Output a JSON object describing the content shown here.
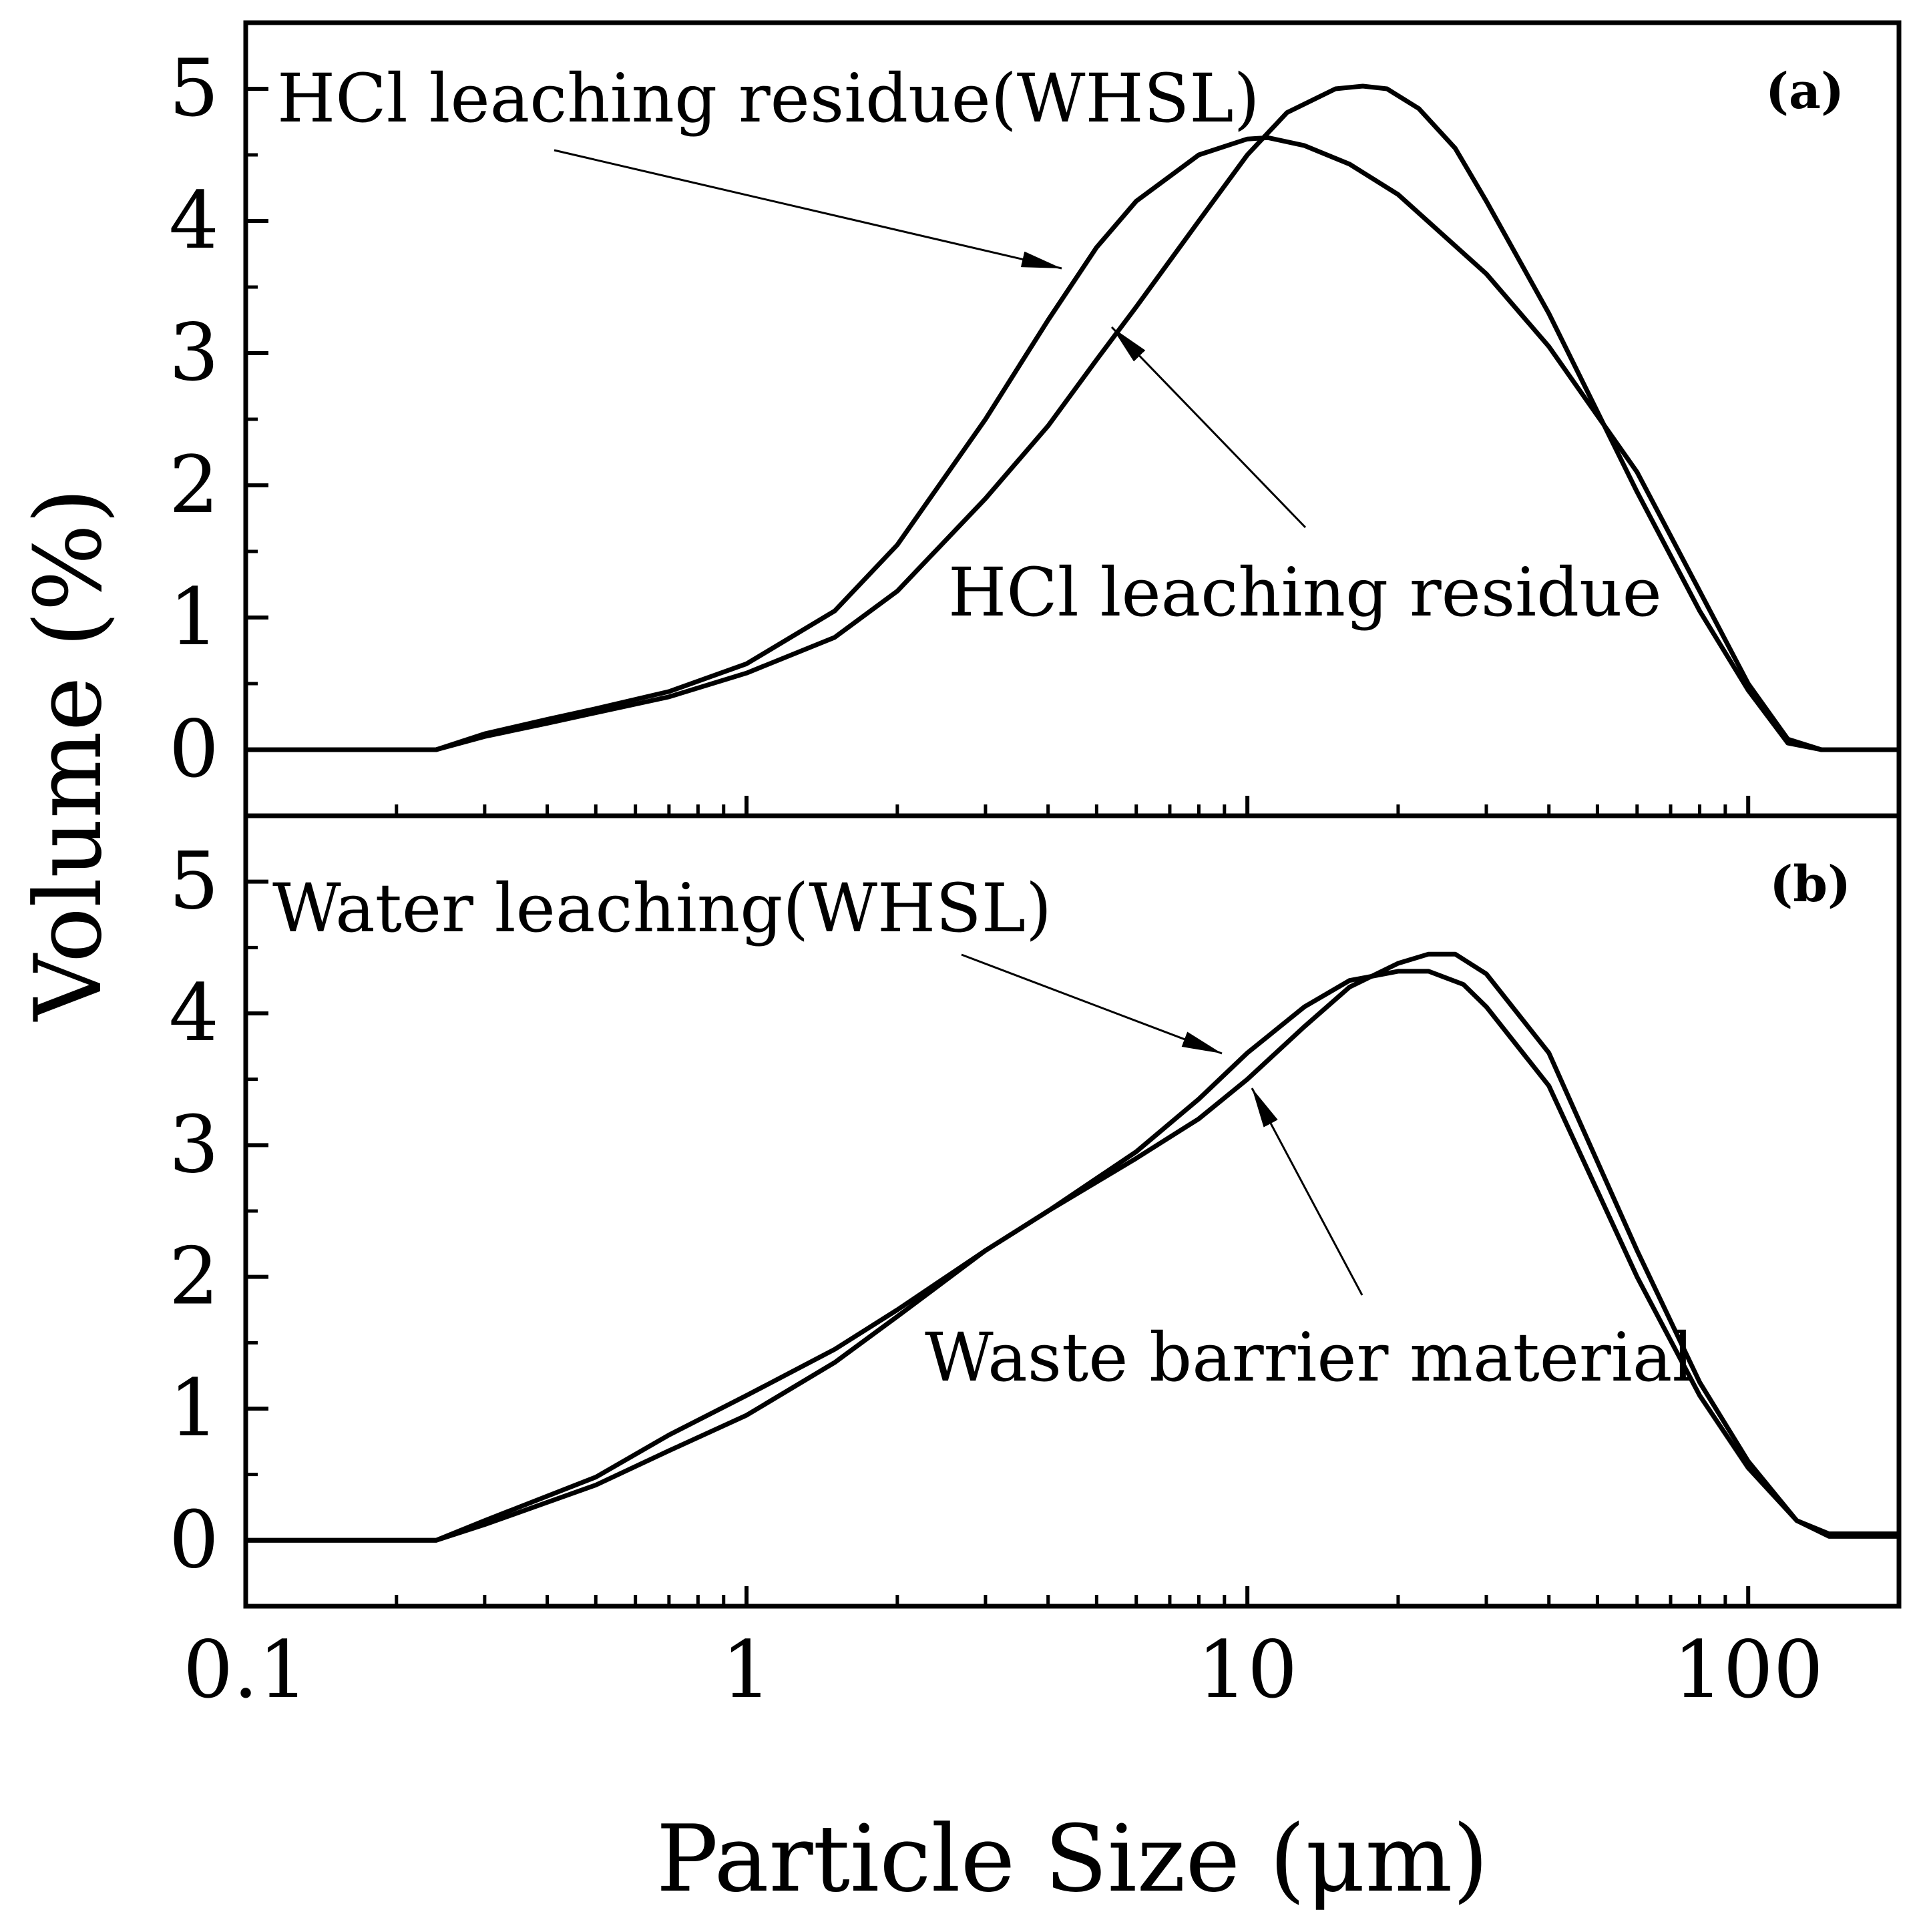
{
  "chart_data": {
    "type": "line",
    "figure": {
      "xlabel": "Particle Size (μm)",
      "ylabel": "Volume (%)",
      "xscale": "log",
      "xlim": [
        0.1,
        200
      ],
      "x_ticks": [
        0.1,
        1,
        10,
        100
      ],
      "x_tick_labels": [
        "0.1",
        "1",
        "10",
        "100"
      ],
      "y_ticks": [
        0,
        1,
        2,
        3,
        4,
        5
      ],
      "y_tick_labels": [
        "0",
        "1",
        "2",
        "3",
        "4",
        "5"
      ]
    },
    "panels": [
      {
        "label": "(a)",
        "ylim": [
          -0.5,
          5.5
        ],
        "series": [
          {
            "name": "HCl leaching residue(WHSL)",
            "points": [
              [
                0.1,
                0
              ],
              [
                0.2,
                0
              ],
              [
                0.24,
                0
              ],
              [
                0.3,
                0.12
              ],
              [
                0.4,
                0.23
              ],
              [
                0.5,
                0.31
              ],
              [
                0.7,
                0.44
              ],
              [
                1.0,
                0.65
              ],
              [
                1.5,
                1.05
              ],
              [
                2.0,
                1.55
              ],
              [
                3.0,
                2.5
              ],
              [
                4.0,
                3.25
              ],
              [
                5.0,
                3.8
              ],
              [
                6.0,
                4.15
              ],
              [
                8.0,
                4.5
              ],
              [
                10.0,
                4.62
              ],
              [
                11.0,
                4.63
              ],
              [
                13.0,
                4.57
              ],
              [
                16.0,
                4.43
              ],
              [
                20.0,
                4.2
              ],
              [
                30.0,
                3.6
              ],
              [
                40.0,
                3.05
              ],
              [
                60.0,
                2.1
              ],
              [
                80.0,
                1.2
              ],
              [
                100.0,
                0.5
              ],
              [
                120.0,
                0.08
              ],
              [
                140.0,
                0
              ],
              [
                200.0,
                0
              ]
            ]
          },
          {
            "name": "HCl leaching residue",
            "points": [
              [
                0.1,
                0
              ],
              [
                0.2,
                0
              ],
              [
                0.24,
                0
              ],
              [
                0.3,
                0.1
              ],
              [
                0.4,
                0.2
              ],
              [
                0.5,
                0.28
              ],
              [
                0.7,
                0.4
              ],
              [
                1.0,
                0.58
              ],
              [
                1.5,
                0.85
              ],
              [
                2.0,
                1.2
              ],
              [
                3.0,
                1.9
              ],
              [
                4.0,
                2.45
              ],
              [
                5.0,
                2.95
              ],
              [
                6.0,
                3.35
              ],
              [
                8.0,
                4.0
              ],
              [
                10.0,
                4.5
              ],
              [
                12.0,
                4.82
              ],
              [
                15.0,
                5.0
              ],
              [
                17.0,
                5.02
              ],
              [
                19.0,
                5.0
              ],
              [
                22.0,
                4.85
              ],
              [
                26.0,
                4.55
              ],
              [
                30.0,
                4.15
              ],
              [
                40.0,
                3.3
              ],
              [
                60.0,
                1.95
              ],
              [
                80.0,
                1.05
              ],
              [
                100.0,
                0.45
              ],
              [
                120.0,
                0.05
              ],
              [
                140.0,
                0
              ],
              [
                200.0,
                0
              ]
            ]
          }
        ],
        "annotations": [
          {
            "text": "HCl leaching residue(WHSL)",
            "target": "HCl leaching residue(WHSL)",
            "x": 4.6
          },
          {
            "text": "HCl leaching residue",
            "target": "HCl leaching residue",
            "x": 5.8
          }
        ]
      },
      {
        "label": "(b)",
        "ylim": [
          -0.5,
          5.5
        ],
        "series": [
          {
            "name": "Water leaching(WHSL)",
            "points": [
              [
                0.1,
                0
              ],
              [
                0.2,
                0
              ],
              [
                0.24,
                0
              ],
              [
                0.3,
                0.15
              ],
              [
                0.5,
                0.48
              ],
              [
                0.7,
                0.8
              ],
              [
                1.0,
                1.1
              ],
              [
                1.5,
                1.45
              ],
              [
                2.0,
                1.75
              ],
              [
                3.0,
                2.2
              ],
              [
                4.0,
                2.5
              ],
              [
                6.0,
                2.95
              ],
              [
                8.0,
                3.35
              ],
              [
                10.0,
                3.7
              ],
              [
                13.0,
                4.05
              ],
              [
                16.0,
                4.25
              ],
              [
                20.0,
                4.32
              ],
              [
                23.0,
                4.32
              ],
              [
                27.0,
                4.22
              ],
              [
                30.0,
                4.05
              ],
              [
                40.0,
                3.45
              ],
              [
                60.0,
                2.0
              ],
              [
                80.0,
                1.1
              ],
              [
                100.0,
                0.55
              ],
              [
                125.0,
                0.15
              ],
              [
                145.0,
                0.05
              ],
              [
                200.0,
                0.05
              ]
            ]
          },
          {
            "name": "Waste barrier material",
            "points": [
              [
                0.1,
                0
              ],
              [
                0.2,
                0
              ],
              [
                0.24,
                0
              ],
              [
                0.3,
                0.12
              ],
              [
                0.5,
                0.42
              ],
              [
                0.7,
                0.68
              ],
              [
                1.0,
                0.95
              ],
              [
                1.5,
                1.35
              ],
              [
                2.0,
                1.7
              ],
              [
                3.0,
                2.2
              ],
              [
                4.0,
                2.5
              ],
              [
                6.0,
                2.9
              ],
              [
                8.0,
                3.2
              ],
              [
                10.0,
                3.5
              ],
              [
                13.0,
                3.9
              ],
              [
                16.0,
                4.2
              ],
              [
                20.0,
                4.38
              ],
              [
                23.0,
                4.45
              ],
              [
                26.0,
                4.45
              ],
              [
                30.0,
                4.3
              ],
              [
                40.0,
                3.7
              ],
              [
                60.0,
                2.2
              ],
              [
                80.0,
                1.2
              ],
              [
                100.0,
                0.6
              ],
              [
                125.0,
                0.15
              ],
              [
                145.0,
                0.03
              ],
              [
                200.0,
                0.03
              ]
            ]
          }
        ],
        "annotations": [
          {
            "text": "Water leaching(WHSL)",
            "target": "Water leaching(WHSL)",
            "x": 9.0
          },
          {
            "text": "Waste barrier material",
            "target": "Waste barrier material",
            "x": 9.8
          }
        ]
      }
    ]
  }
}
